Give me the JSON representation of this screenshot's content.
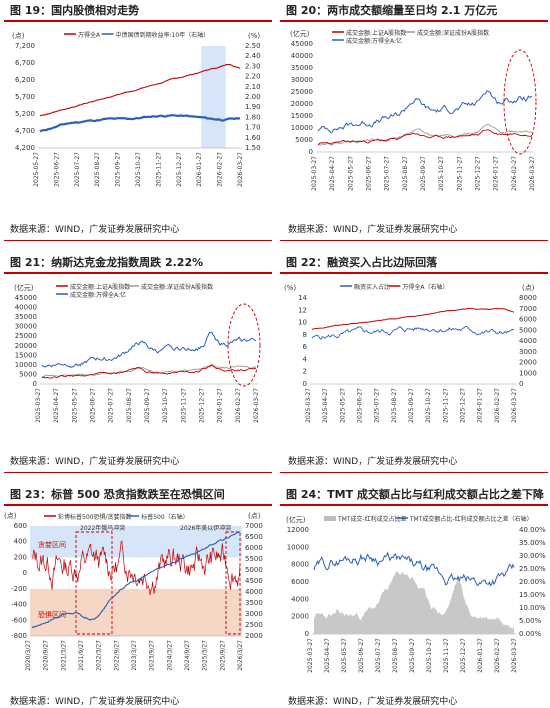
{
  "colors": {
    "red": "#c00000",
    "blue": "#2c5fb8",
    "gray": "#9a9a9a",
    "sand": "#f6d6c4",
    "sky": "#d6e6f8"
  },
  "source_text": "数据来源：WIND，广发证券发展研究中心",
  "charts": [
    {
      "id": "f19",
      "title": "图 19：国内股债相对走势",
      "unit_l": "(点)",
      "unit_r": "(%)",
      "legend": [
        "万得全A",
        "中债国债到期收益率:10年（右轴）"
      ],
      "yl_ticks": [
        "7,200",
        "6,700",
        "6,200",
        "5,700",
        "5,200",
        "4,700",
        "4,200"
      ],
      "yr_ticks": [
        "2.50",
        "2.40",
        "2.30",
        "2.20",
        "2.10",
        "2.00",
        "1.90",
        "1.80",
        "1.70",
        "1.60",
        "1.50"
      ],
      "x_ticks": [
        "2025-05-27",
        "2025-06-27",
        "2025-07-27",
        "2025-08-27",
        "2025-09-27",
        "2025-10-27",
        "2025-11-27",
        "2025-12-27",
        "2026-01-27",
        "2026-02-27",
        "2026-03-27"
      ]
    },
    {
      "id": "f20",
      "title": "图 20：两市成交额缩量至日均 2.1 万亿元",
      "unit_l": "(亿元)",
      "legend": [
        "成交金额:上证A股指数",
        "成交金额:深证成份A股指数",
        "成交金额:万得全A:亿"
      ],
      "yl_ticks": [
        "45000",
        "40000",
        "35000",
        "30000",
        "25000",
        "20000",
        "15000",
        "10000",
        "5000",
        "0"
      ],
      "x_ticks": [
        "2025-03-27",
        "2025-04-27",
        "2025-05-27",
        "2025-06-27",
        "2025-07-27",
        "2025-08-27",
        "2025-09-27",
        "2025-10-27",
        "2025-11-27",
        "2025-12-27",
        "2026-01-27",
        "2026-02-27",
        "2026-03-27"
      ]
    },
    {
      "id": "f21",
      "title": "图 21：纳斯达克金龙指数周跌 2.22%",
      "unit_l": "(亿元)",
      "legend": [
        "成交金额:上证A股指数",
        "成交金额:深证成份A股指数",
        "成交金额:万得全A:亿"
      ],
      "yl_ticks": [
        "45000",
        "40000",
        "35000",
        "30000",
        "25000",
        "20000",
        "15000",
        "10000",
        "5000",
        "0"
      ],
      "x_ticks": [
        "2025-03-27",
        "2025-04-27",
        "2025-05-27",
        "2025-06-27",
        "2025-07-27",
        "2025-08-27",
        "2025-09-27",
        "2025-10-27",
        "2025-11-27",
        "2025-12-27",
        "2026-01-27",
        "2026-02-27",
        "2026-03-27"
      ]
    },
    {
      "id": "f22",
      "title": "图 22：融资买入占比边际回落",
      "unit_l": "(%)",
      "unit_r": "(点)",
      "legend": [
        "融资买入占比",
        "万得全A（右轴）"
      ],
      "yl_ticks": [
        "14",
        "12",
        "10",
        "8",
        "6",
        "4",
        "2",
        "0"
      ],
      "yr_ticks": [
        "8000",
        "7000",
        "6000",
        "5000",
        "4000",
        "3000",
        "2000",
        "1000",
        "0"
      ],
      "x_ticks": [
        "2025-03-27",
        "2025-04-27",
        "2025-05-27",
        "2025-06-27",
        "2025-07-27",
        "2025-08-27",
        "2025-09-27",
        "2025-10-27",
        "2025-11-27",
        "2025-12-27",
        "2026-01-27",
        "2026-02-27",
        "2026-03-27"
      ]
    },
    {
      "id": "f23",
      "title": "图 23：标普 500 恐贪指数跌至在恐惧区间",
      "unit_l": "(点)",
      "unit_r": "(点)",
      "legend": [
        "彩博标普500恐惧/贪婪指数",
        "标普500（右轴）"
      ],
      "labels": [
        "贪婪区间",
        "恐惧区间",
        "2022年俄乌冲突",
        "2026年美以伊冲突"
      ],
      "yl_ticks": [
        "600",
        "400",
        "200",
        "0",
        "-200",
        "-400",
        "-600",
        "-800"
      ],
      "yr_ticks": [
        "7000",
        "6500",
        "6000",
        "5500",
        "5000",
        "4500",
        "4000",
        "3500",
        "3000",
        "2500",
        "2000"
      ],
      "x_ticks": [
        "2020/3/27",
        "2020/9/27",
        "2021/3/27",
        "2021/9/27",
        "2022/3/27",
        "2022/9/27",
        "2023/3/27",
        "2023/9/27",
        "2024/3/27",
        "2024/9/27",
        "2025/3/27",
        "2025/9/27",
        "2026/3/27"
      ]
    },
    {
      "id": "f24",
      "title": "图 24：TMT 成交额占比与红利成交额占比之差下降",
      "unit_l": "(亿元)",
      "legend": [
        "TMT成交-红利成交占比差",
        "TMT成交额占比-红利成交额占比之差（右轴）"
      ],
      "yl_ticks": [
        "12000",
        "10000",
        "8000",
        "6000",
        "4000",
        "2000",
        "0"
      ],
      "yr_ticks": [
        "40.00%",
        "35.00%",
        "30.00%",
        "25.00%",
        "20.00%",
        "15.00%",
        "10.00%",
        "5.00%",
        "0.00%"
      ],
      "x_ticks": [
        "2025-03-27",
        "2025-04-27",
        "2025-05-27",
        "2025-06-27",
        "2025-07-27",
        "2025-08-27",
        "2025-09-27",
        "2025-10-27",
        "2025-11-27",
        "2025-12-27",
        "2026-01-27",
        "2026-02-27",
        "2026-03-27"
      ]
    }
  ]
}
